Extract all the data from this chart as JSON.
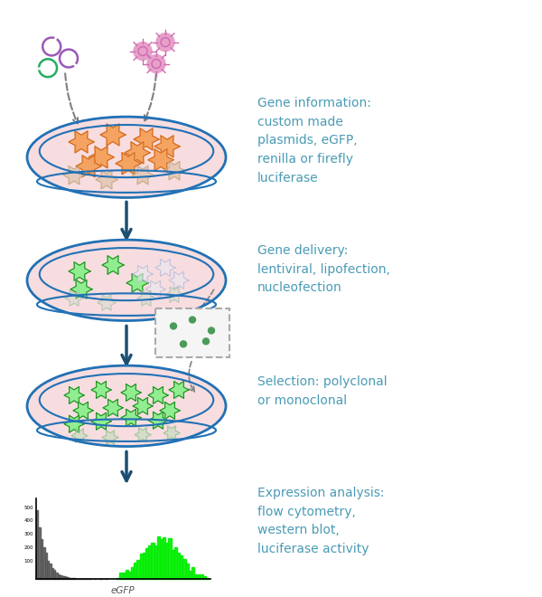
{
  "bg_color": "#ffffff",
  "text_color": "#4a9bb5",
  "arrow_color": "#1b4f72",
  "step1_text": "Gene information:\ncustom made\nplasmids, eGFP,\nrenilla or firefly\nluciferase",
  "step2_text": "Gene delivery:\nlentiviral, lipofection,\nnucleofection",
  "step3_text": "Selection: polyclonal\nor monoclonal",
  "step4_text": "Expression analysis:\nflow cytometry,\nwestern blot,\nluciferase activity",
  "dish_fill": "#f7dde0",
  "dish_rim_dark": "#2171b5",
  "cell_orange_fill": "#f4a460",
  "cell_orange_edge": "#d2691e",
  "cell_green_fill": "#90ee90",
  "cell_green_edge": "#228b22"
}
